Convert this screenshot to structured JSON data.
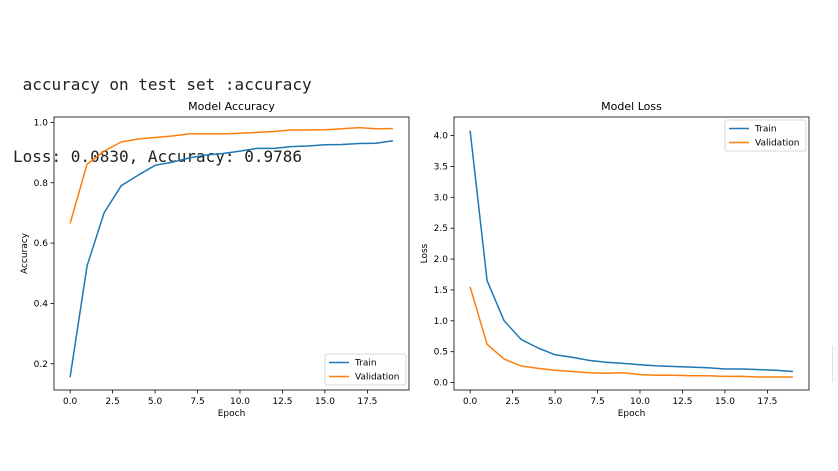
{
  "console": {
    "line1": " accuracy on test set :accuracy",
    "line2": "Loss: 0.0830, Accuracy: 0.9786"
  },
  "colors": {
    "train": "#1f77b4",
    "validation": "#ff7f0e"
  },
  "chart_data": [
    {
      "type": "line",
      "title": "Model Accuracy",
      "xlabel": "Epoch",
      "ylabel": "Accuracy",
      "xlim": [
        -0.95,
        19.95
      ],
      "ylim": [
        0.113,
        1.018
      ],
      "xticks": [
        "0.0",
        "2.5",
        "5.0",
        "7.5",
        "10.0",
        "12.5",
        "15.0",
        "17.5"
      ],
      "xtick_values": [
        0,
        2.5,
        5,
        7.5,
        10,
        12.5,
        15,
        17.5
      ],
      "yticks": [
        "0.2",
        "0.4",
        "0.6",
        "0.8",
        "1.0"
      ],
      "ytick_values": [
        0.2,
        0.4,
        0.6,
        0.8,
        1.0
      ],
      "legend_position": "lower-right",
      "x": [
        0,
        1,
        2,
        3,
        4,
        5,
        6,
        7,
        8,
        9,
        10,
        11,
        12,
        13,
        14,
        15,
        16,
        17,
        18,
        19
      ],
      "series": [
        {
          "name": "Train",
          "color": "#1f77b4",
          "values": [
            0.155,
            0.525,
            0.7,
            0.79,
            0.825,
            0.858,
            0.868,
            0.882,
            0.892,
            0.897,
            0.905,
            0.914,
            0.914,
            0.92,
            0.922,
            0.926,
            0.927,
            0.93,
            0.931,
            0.939
          ]
        },
        {
          "name": "Validation",
          "color": "#ff7f0e",
          "values": [
            0.665,
            0.862,
            0.905,
            0.935,
            0.945,
            0.95,
            0.955,
            0.962,
            0.962,
            0.962,
            0.964,
            0.967,
            0.97,
            0.975,
            0.975,
            0.976,
            0.979,
            0.983,
            0.979,
            0.98
          ]
        }
      ]
    },
    {
      "type": "line",
      "title": "Model Loss",
      "xlabel": "Epoch",
      "ylabel": "Loss",
      "xlim": [
        -0.95,
        19.95
      ],
      "ylim": [
        -0.12,
        4.3
      ],
      "xticks": [
        "0.0",
        "2.5",
        "5.0",
        "7.5",
        "10.0",
        "12.5",
        "15.0",
        "17.5"
      ],
      "xtick_values": [
        0,
        2.5,
        5,
        7.5,
        10,
        12.5,
        15,
        17.5
      ],
      "yticks": [
        "0.0",
        "0.5",
        "1.0",
        "1.5",
        "2.0",
        "2.5",
        "3.0",
        "3.5",
        "4.0"
      ],
      "ytick_values": [
        0,
        0.5,
        1.0,
        1.5,
        2.0,
        2.5,
        3.0,
        3.5,
        4.0
      ],
      "legend_position": "upper-right",
      "x": [
        0,
        1,
        2,
        3,
        4,
        5,
        6,
        7,
        8,
        9,
        10,
        11,
        12,
        13,
        14,
        15,
        16,
        17,
        18,
        19
      ],
      "series": [
        {
          "name": "Train",
          "color": "#1f77b4",
          "values": [
            4.08,
            1.65,
            1.0,
            0.7,
            0.56,
            0.45,
            0.41,
            0.36,
            0.33,
            0.31,
            0.29,
            0.27,
            0.26,
            0.25,
            0.24,
            0.22,
            0.22,
            0.21,
            0.2,
            0.18
          ]
        },
        {
          "name": "Validation",
          "color": "#ff7f0e",
          "values": [
            1.55,
            0.62,
            0.38,
            0.27,
            0.23,
            0.2,
            0.18,
            0.16,
            0.15,
            0.16,
            0.13,
            0.12,
            0.12,
            0.11,
            0.11,
            0.1,
            0.1,
            0.09,
            0.09,
            0.09
          ]
        }
      ]
    }
  ]
}
